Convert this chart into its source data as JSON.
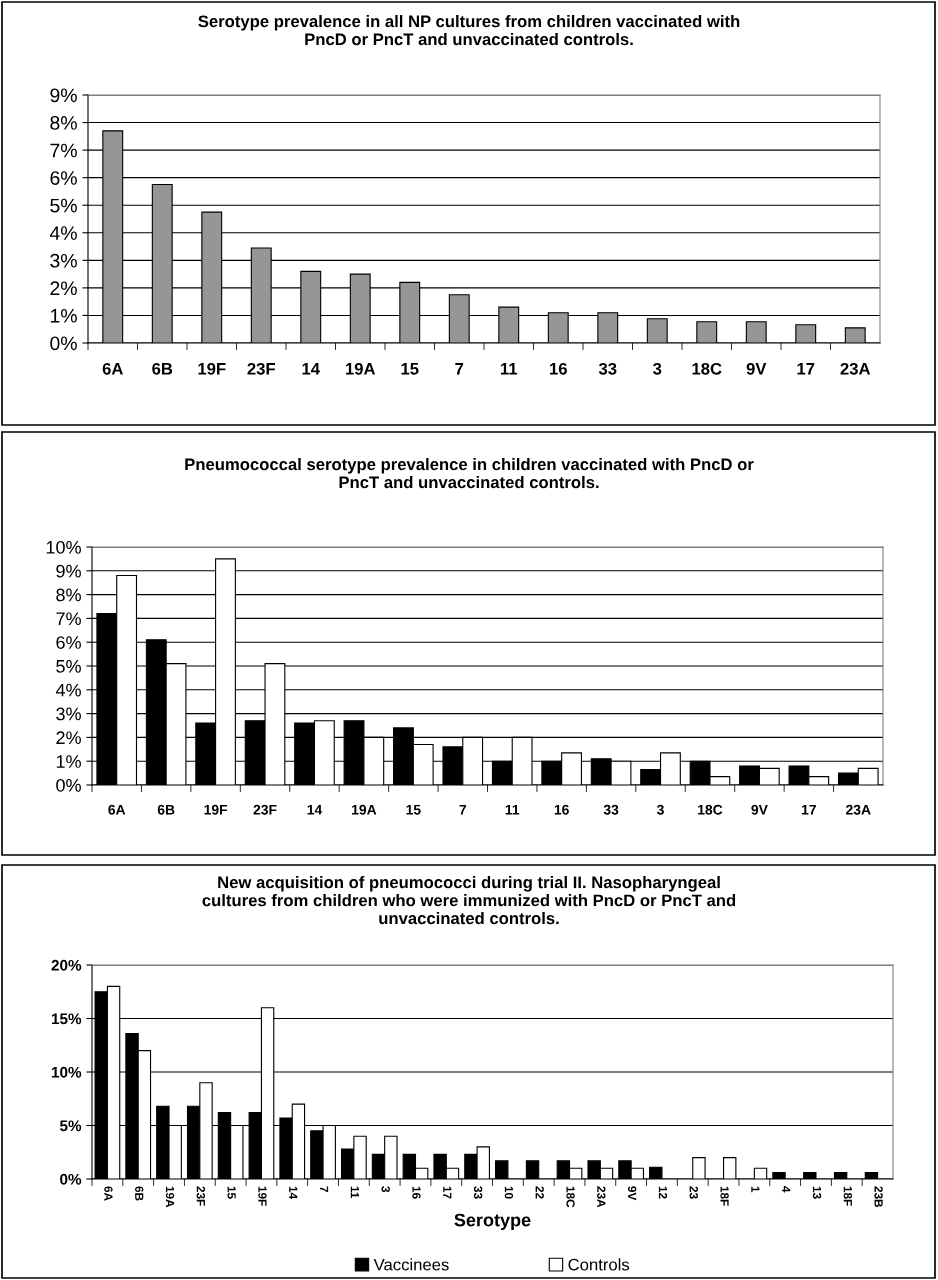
{
  "chart_data": [
    {
      "type": "bar",
      "title": "Serotype prevalence in all NP cultures from children vaccinated with\nPncD or PncT and unvaccinated controls.",
      "categories": [
        "6A",
        "6B",
        "19F",
        "23F",
        "14",
        "19A",
        "15",
        "7",
        "11",
        "16",
        "33",
        "3",
        "18C",
        "9V",
        "17",
        "23A"
      ],
      "values": [
        7.7,
        5.75,
        4.75,
        3.45,
        2.6,
        2.5,
        2.2,
        1.75,
        1.3,
        1.1,
        1.1,
        0.88,
        0.77,
        0.77,
        0.66,
        0.55
      ],
      "color": "#969696",
      "ylim": [
        0,
        9
      ],
      "yticks": [
        {
          "value": 0,
          "label": "0%"
        },
        {
          "value": 1,
          "label": "1%"
        },
        {
          "value": 2,
          "label": "2%"
        },
        {
          "value": 3,
          "label": "3%"
        },
        {
          "value": 4,
          "label": "4%"
        },
        {
          "value": 5,
          "label": "5%"
        },
        {
          "value": 6,
          "label": "6%"
        },
        {
          "value": 7,
          "label": "7%"
        },
        {
          "value": 8,
          "label": "8%"
        },
        {
          "value": 9,
          "label": "9%"
        }
      ],
      "grid": "y"
    },
    {
      "type": "bar",
      "title": "Pneumococcal serotype prevalence in children vaccinated with PncD or\nPncT and unvaccinated controls.",
      "categories": [
        "6A",
        "6B",
        "19F",
        "23F",
        "14",
        "19A",
        "15",
        "7",
        "11",
        "16",
        "33",
        "3",
        "18C",
        "9V",
        "17",
        "23A"
      ],
      "series": [
        {
          "color": "#000000",
          "values": [
            7.2,
            6.1,
            2.6,
            2.7,
            2.6,
            2.7,
            2.4,
            1.6,
            1.0,
            1.0,
            1.1,
            0.65,
            1.0,
            0.8,
            0.8,
            0.5
          ]
        },
        {
          "color": "#ffffff",
          "values": [
            8.8,
            5.1,
            9.5,
            5.1,
            2.7,
            2.0,
            1.7,
            2.0,
            2.0,
            1.35,
            1.0,
            1.35,
            0.35,
            0.7,
            0.35,
            0.7
          ]
        }
      ],
      "ylim": [
        0,
        10
      ],
      "yticks": [
        {
          "value": 0,
          "label": "0%"
        },
        {
          "value": 1,
          "label": "1%"
        },
        {
          "value": 2,
          "label": "2%"
        },
        {
          "value": 3,
          "label": "3%"
        },
        {
          "value": 4,
          "label": "4%"
        },
        {
          "value": 5,
          "label": "5%"
        },
        {
          "value": 6,
          "label": "6%"
        },
        {
          "value": 7,
          "label": "7%"
        },
        {
          "value": 8,
          "label": "8%"
        },
        {
          "value": 9,
          "label": "9%"
        },
        {
          "value": 10,
          "label": "10%"
        }
      ],
      "grid": "y"
    },
    {
      "type": "bar",
      "title": "New acquisition of pneumococci during trial II. Nasopharyngeal\ncultures from children who were immunized with PncD or PncT and\nunvaccinated controls.",
      "xlabel": "Serotype",
      "categories": [
        "6A",
        "6B",
        "19A",
        "23F",
        "15",
        "19F",
        "14",
        "7",
        "11",
        "3",
        "16",
        "17",
        "33",
        "10",
        "22",
        "18C",
        "23A",
        "9V",
        "12",
        "23",
        "18F",
        "1",
        "4",
        "13",
        "18F",
        "23B"
      ],
      "series": [
        {
          "name": "Vaccinees",
          "color": "#000000",
          "values": [
            17.5,
            13.6,
            6.8,
            6.8,
            6.2,
            6.2,
            5.7,
            4.5,
            2.8,
            2.3,
            2.3,
            2.3,
            2.3,
            1.7,
            1.7,
            1.7,
            1.7,
            1.7,
            1.1,
            0,
            0,
            0,
            0.6,
            0.6,
            0.6,
            0.6
          ]
        },
        {
          "name": "Controls",
          "color": "#ffffff",
          "values": [
            18,
            12,
            5,
            9,
            5,
            16,
            7,
            5,
            4,
            4,
            1,
            1,
            3,
            0,
            0,
            1,
            1,
            1,
            0,
            2,
            2,
            1,
            0,
            0,
            0,
            0
          ]
        }
      ],
      "ylim": [
        0,
        20
      ],
      "yticks": [
        {
          "value": 0,
          "label": "0%"
        },
        {
          "value": 5,
          "label": "5%"
        },
        {
          "value": 10,
          "label": "10%"
        },
        {
          "value": 15,
          "label": "15%"
        },
        {
          "value": 20,
          "label": "20%"
        }
      ],
      "grid": "y",
      "legend": "bottom"
    }
  ]
}
